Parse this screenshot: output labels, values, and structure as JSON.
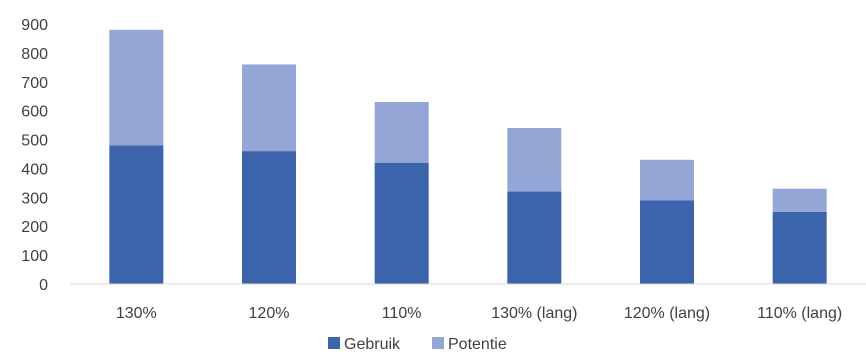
{
  "chart_data": {
    "type": "bar",
    "stacked": true,
    "categories": [
      "130%",
      "120%",
      "110%",
      "130% (lang)",
      "120% (lang)",
      "110% (lang)"
    ],
    "series": [
      {
        "name": "Gebruik",
        "values": [
          480,
          460,
          420,
          320,
          290,
          250
        ],
        "color": "#3c64ad"
      },
      {
        "name": "Potentie",
        "values": [
          400,
          300,
          210,
          220,
          140,
          80
        ],
        "color": "#93a6d6"
      }
    ],
    "ylim": [
      0,
      900
    ],
    "yticks": [
      0,
      100,
      200,
      300,
      400,
      500,
      600,
      700,
      800,
      900
    ],
    "grid": false,
    "legend": "bottom",
    "title": "",
    "xlabel": "",
    "ylabel": ""
  }
}
